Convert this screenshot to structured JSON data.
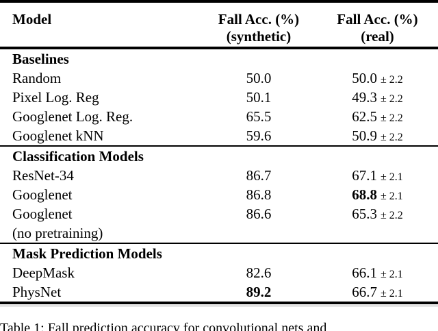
{
  "table": {
    "header": {
      "model": "Model",
      "synthetic_line1": "Fall Acc. (%)",
      "synthetic_line2": "(synthetic)",
      "real_line1": "Fall Acc. (%)",
      "real_line2": "(real)"
    },
    "rows": [
      {
        "type": "section",
        "label": "Baselines"
      },
      {
        "type": "data",
        "model": "Random",
        "synthetic": "50.0",
        "real": "50.0",
        "pm": "± 2.2"
      },
      {
        "type": "data",
        "model": "Pixel Log. Reg",
        "synthetic": "50.1",
        "real": "49.3",
        "pm": "± 2.2"
      },
      {
        "type": "data",
        "model": "Googlenet Log. Reg.",
        "synthetic": "65.5",
        "real": "62.5",
        "pm": "± 2.2"
      },
      {
        "type": "data",
        "model": "Googlenet kNN",
        "synthetic": "59.6",
        "real": "50.9",
        "pm": "± 2.2"
      },
      {
        "type": "section",
        "label": "Classification Models"
      },
      {
        "type": "data",
        "model": "ResNet-34",
        "synthetic": "86.7",
        "real": "67.1",
        "pm": "± 2.1"
      },
      {
        "type": "data",
        "model": "Googlenet",
        "synthetic": "86.8",
        "real": "68.8",
        "pm": "± 2.1"
      },
      {
        "type": "data",
        "model": "Googlenet",
        "synthetic": "86.6",
        "real": "65.3",
        "pm": "± 2.2"
      },
      {
        "type": "data",
        "model": "(no pretraining)",
        "synthetic": "",
        "real": "",
        "pm": ""
      },
      {
        "type": "section",
        "label": "Mask Prediction Models"
      },
      {
        "type": "data",
        "model": "DeepMask",
        "synthetic": "82.6",
        "real": "66.1",
        "pm": "± 2.1"
      },
      {
        "type": "data",
        "model": "PhysNet",
        "synthetic": "89.2",
        "real": "66.7",
        "pm": "± 2.1"
      }
    ],
    "bold_values": {
      "best_real": "68.8",
      "best_synthetic": "89.2"
    }
  },
  "caption": "Table 1: Fall prediction accuracy for convolutional nets and"
}
